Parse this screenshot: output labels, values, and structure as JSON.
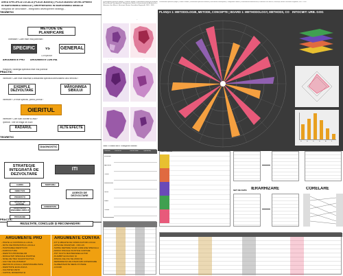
{
  "left": {
    "title_line1": "AREA SPECIFICĂ LOCALĂ (PLACE-BASED) | PLACE-BASED DEVELOPMENT",
    "title_line2": "ÎN MARGINIMEA SIBIULUI | SHEPHERDING IN MARGINIMEA SIBIULUI",
    "title_line3": "integrată de dezvoltare - integrated development strategy -",
    "section_teoretic": "TEORETIC",
    "section_practic": "PRACTIC",
    "metode_planificare": "METODE DE PLANIFICARE",
    "intrebare1": "Întrebare: Care este mai potrivită?",
    "specific": "SPECIFIC",
    "vs": "VS",
    "general": "GENERAL",
    "comparatie": "Comparație",
    "argumente_pro_small": "ARGUMENTE PRO",
    "argumente_contra_small": "ARGUMENTE CONTRA",
    "nota1": "Răspuns: Strategia specifică este mai potrivită",
    "practic_line": "PRACTIC",
    "intrebare2": "Întrebare: Care este influența și atitudinea specifică dezvoltarea unui teritoriu?",
    "exemple": "EXEMPLE DEZVOLTARE",
    "marginimea": "MĂRGINIMEA SIBIULUI",
    "intrebare3": "Întrebare: Ce este specific, prima, primul?",
    "oieritul": "OIERITUL",
    "intrebare4": "Întrebare: Cum sunt cuvinte și ziua?",
    "subintrebare": "Ipoteză: Tine se leagă de ziua?",
    "radarul": "RADARUL",
    "alte_efecte": "ALTE EFECTE",
    "teoretic2": "TEORETIC",
    "diagnostic": "DIAGNOSTIC",
    "strategie": "STRATEGIE INTEGRATĂ DE DEZVOLTARE",
    "iti": "ITI",
    "row_items": [
      "CADRU",
      "OBIECTIVE",
      "PRIORITĂȚI",
      "MĂSURI DE ACȚIUNE",
      "OPORTUNITĂȚI MARGINIMEA SIBIULUI",
      "PROGRAME"
    ],
    "agenti": "AGENȚII DE DEZVOLTARE",
    "teritoriu": "TERITORIU",
    "comunitate": "COMUNITATE",
    "practic2": "PRACTIC",
    "rezultate": "REZULTATE, CONCLUZII ȘI RECOMANDĂRI",
    "argumente_pro": "ARGUMENTE PRO",
    "argumente_contra": "ARGUMENTE CONTRA",
    "pro_list": [
      "- POATE LA CONTROLUL LOCAL",
      "- DOTĂ FIE PRONOSTICĂ LOCALĂ",
      "- PĂSTRAREA IDENTITĂȚII",
      "- AGRICULTURĂ",
      "- IDENTITĂ PRODUSELOR",
      "- MODALITATI SPECIALE POZITIVE",
      "- NIVEL DE TRAI SCĂZUT/ACTIVĂ",
      "- CULT DE VOLUNTARIAT",
      "- DEZVOLTA LOCALĂ, RESPONSABILITATE",
      "- IDENTITATE ECOLOGICĂ",
      "- CALITATEA VIEȚII",
      "- CAPITAL MODESTEA ȘI"
    ],
    "contra_list": [
      "- FIT Ș ABILIATE DE CONDUCĂTORI LOCALI",
      "- LIPSA DE FINANȚĂRI - OFF-UN",
      "- SUPRA DEPINDE SCĂR CARE ESE SPECIALĂ",
      "- AROCII FISCALE OLISTICE CANTAȘE",
      "- POT SCUTĂ MANTERAREA ALTOR",
      "- ÎN AMBIT ECOLOGIC ȘI",
      "- RISCUL DE A NU SE ZUNO ȘI",
      "- DEPENDENȚĂ DE FINANȚĂRI ANTERIOARE",
      "- SLABE/FINANTE MEDIU PUTERE",
      "- LOCURI"
    ]
  },
  "mid": {
    "header": "«Dezvoltarea specifică ajunge» | Dumitru Sándor | Dezvoltarea specifică teritorială (Place-Based Development) - Marginimea Sibiului | Universitatea de Arhitectură și Urbanism «Ion Mincu», București, Master Dezvoltare Regională, 2019 - 2020",
    "map_captions": [
      "Harta 1: Indice de dezvoltare socio-economică",
      "Harta 2: Regiuni cu surse de venit",
      "Harta 3: Tipologii teritoriale urban-rural",
      "Harta 4: Dinamica demografică"
    ],
    "table_title": "Tabel 1: Analiza SWOT a Mărginimii Sibiului",
    "table_head": [
      "Domeniu",
      "Puncte tari",
      "Puncte slabe",
      "Oportunități"
    ],
    "table_rows": [
      "Economie",
      "Agricultură",
      "Turism",
      "Infrastructură",
      "Social",
      "Mediu",
      "Cultură"
    ],
    "diagram_caption": "Fig. 2: Schema metodologică"
  },
  "right": {
    "planșa": "PLANȘA 1: METODOLOGIE, METODE, CONCEPTE | BOARD 1: METHODOLOGY, METHODS, CONCEPTS",
    "intocmit": "ÎNTOCMIT: URB. GOG",
    "radar_caption": "Diagrama 1: Radar de evaluare a specificului local",
    "ierarhizare": "IERARHIZARE",
    "corelare": "CORELARE",
    "table_caption": "Tabel 2: Indicatori",
    "set_de_date": "SET DE DATE",
    "bar_caption": "Fig. 5: Evoluție",
    "bar_labels": [
      "A",
      "B",
      "C",
      "D",
      "E",
      "F"
    ]
  },
  "bar_chart": {
    "type": "bar",
    "categories": [
      "A",
      "B",
      "C",
      "D",
      "E",
      "F"
    ],
    "values": [
      55,
      75,
      95,
      70,
      40,
      20
    ],
    "ylim": [
      0,
      100
    ]
  },
  "colors": {
    "accent_orange": "#f0a010",
    "dark_gray": "#555555",
    "pink_radar": "#e85a7a",
    "orange_radar": "#f5a040",
    "map_purple": "#7a3a8a"
  }
}
